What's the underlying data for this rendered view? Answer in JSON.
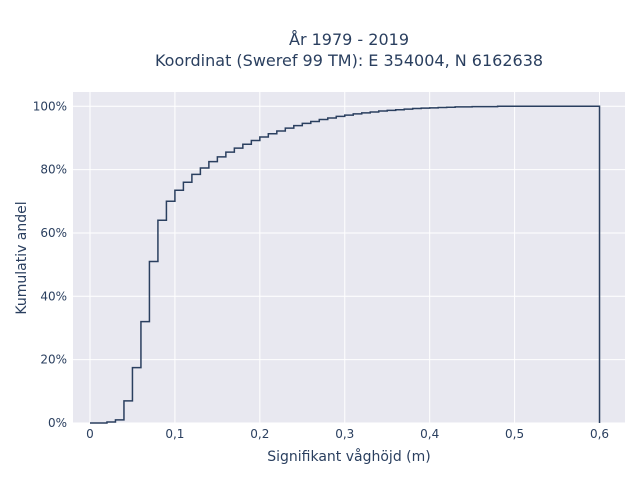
{
  "chart_data": {
    "type": "line",
    "title_line1": "År 1979 - 2019",
    "title_line2": "Koordinat (Sweref 99 TM): E 354004, N 6162638",
    "xlabel": "Signifikant våghöjd (m)",
    "ylabel": "Kumulativ andel",
    "xlim": [
      -0.02,
      0.63
    ],
    "ylim": [
      0,
      1.045
    ],
    "x_ticks": [
      0,
      0.1,
      0.2,
      0.3,
      0.4,
      0.5,
      0.6
    ],
    "x_tick_labels": [
      "0",
      "0,1",
      "0,2",
      "0,3",
      "0,4",
      "0,5",
      "0,6"
    ],
    "y_ticks": [
      0,
      0.2,
      0.4,
      0.6,
      0.8,
      1.0
    ],
    "y_tick_labels": [
      "0%",
      "20%",
      "40%",
      "60%",
      "80%",
      "100%"
    ],
    "grid": true,
    "line_color": "#2a3f5f",
    "bins": [
      [
        0.01,
        0.0
      ],
      [
        0.02,
        0.003
      ],
      [
        0.03,
        0.01
      ],
      [
        0.04,
        0.07
      ],
      [
        0.05,
        0.175
      ],
      [
        0.06,
        0.32
      ],
      [
        0.07,
        0.51
      ],
      [
        0.08,
        0.64
      ],
      [
        0.09,
        0.7
      ],
      [
        0.1,
        0.735
      ],
      [
        0.11,
        0.76
      ],
      [
        0.12,
        0.785
      ],
      [
        0.13,
        0.805
      ],
      [
        0.14,
        0.825
      ],
      [
        0.15,
        0.84
      ],
      [
        0.16,
        0.855
      ],
      [
        0.17,
        0.868
      ],
      [
        0.18,
        0.88
      ],
      [
        0.19,
        0.892
      ],
      [
        0.2,
        0.903
      ],
      [
        0.21,
        0.913
      ],
      [
        0.22,
        0.922
      ],
      [
        0.23,
        0.931
      ],
      [
        0.24,
        0.939
      ],
      [
        0.25,
        0.946
      ],
      [
        0.26,
        0.952
      ],
      [
        0.27,
        0.958
      ],
      [
        0.28,
        0.963
      ],
      [
        0.29,
        0.968
      ],
      [
        0.3,
        0.972
      ],
      [
        0.31,
        0.976
      ],
      [
        0.32,
        0.979
      ],
      [
        0.33,
        0.982
      ],
      [
        0.34,
        0.985
      ],
      [
        0.35,
        0.987
      ],
      [
        0.36,
        0.989
      ],
      [
        0.37,
        0.991
      ],
      [
        0.38,
        0.993
      ],
      [
        0.39,
        0.994
      ],
      [
        0.4,
        0.995
      ],
      [
        0.41,
        0.996
      ],
      [
        0.42,
        0.997
      ],
      [
        0.43,
        0.998
      ],
      [
        0.44,
        0.998
      ],
      [
        0.45,
        0.999
      ],
      [
        0.46,
        0.999
      ],
      [
        0.47,
        0.999
      ],
      [
        0.48,
        1.0
      ],
      [
        0.6,
        1.0
      ]
    ]
  }
}
